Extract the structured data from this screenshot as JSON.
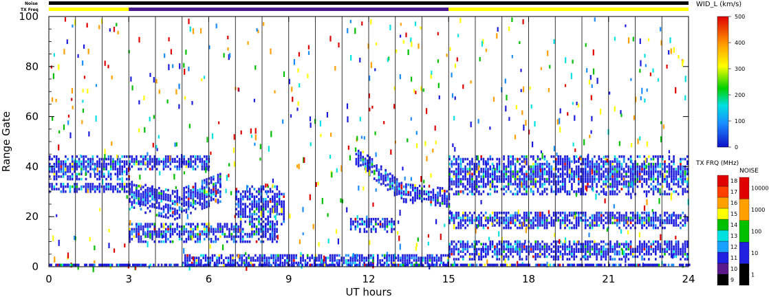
{
  "header": {
    "noise_label": "Noise",
    "txfreq_label": "TX Freq"
  },
  "chart_data": {
    "type": "scatter",
    "subtype": "range-time-intensity",
    "xlabel": "UT hours",
    "ylabel": "Range Gate",
    "xlim": [
      0,
      24
    ],
    "ylim": [
      0,
      100
    ],
    "x_ticks": [
      "0",
      "3",
      "6",
      "9",
      "12",
      "15",
      "18",
      "21",
      "24"
    ],
    "y_ticks": [
      "0",
      "20",
      "40",
      "60",
      "80",
      "100"
    ],
    "scan_boundaries_hours": [
      1,
      2,
      3,
      4,
      5,
      6,
      7,
      8,
      9,
      10,
      11,
      12,
      13,
      14,
      15,
      16,
      17,
      18,
      19,
      20,
      21,
      22,
      23
    ],
    "tx_freq_bar": [
      {
        "start": 0,
        "end": 3,
        "color": "#ffff00"
      },
      {
        "start": 3,
        "end": 15,
        "color": "#4b1a8c"
      },
      {
        "start": 15,
        "end": 24,
        "color": "#ffff00"
      }
    ],
    "noise_bar": [
      {
        "start": 0,
        "end": 24,
        "color": "#000000"
      }
    ],
    "echo_bands": [
      {
        "x0": 0,
        "x1": 3,
        "y": 40,
        "w": 10
      },
      {
        "x0": 0,
        "x1": 3,
        "y": 32,
        "w": 4
      },
      {
        "x0": 3,
        "x1": 6.4,
        "lo": [
          29,
          25,
          32
        ],
        "w": 12
      },
      {
        "x0": 3,
        "x1": 6,
        "y": 42,
        "w": 6
      },
      {
        "x0": 3,
        "x1": 8.6,
        "y": 14,
        "w": 8
      },
      {
        "x0": 7,
        "x1": 8.8,
        "y": 25,
        "w": 16
      },
      {
        "x0": 5,
        "x1": 15,
        "y": 3,
        "w": 5
      },
      {
        "x0": 11.5,
        "x1": 15,
        "lo": [
          45,
          30,
          28
        ],
        "w": 8
      },
      {
        "x0": 11.3,
        "x1": 13,
        "y": 17,
        "w": 6
      },
      {
        "x0": 15,
        "x1": 24,
        "y": 37,
        "w": 16
      },
      {
        "x0": 15,
        "x1": 24,
        "y": 19,
        "w": 7
      },
      {
        "x0": 15,
        "x1": 24,
        "y": 7,
        "w": 8
      }
    ],
    "width_colorbar": {
      "title": "WID_L (km/s)",
      "ticks": [
        "0",
        "100",
        "200",
        "300",
        "400",
        "500"
      ],
      "range": [
        0,
        500
      ]
    },
    "txfreq_colorbar": {
      "title": "TX FRQ (MHz)",
      "ticks": [
        "9",
        "10",
        "11",
        "12",
        "13",
        "14",
        "15",
        "16",
        "17",
        "18"
      ],
      "colors": [
        "#000000",
        "#5a1a8c",
        "#2020e0",
        "#1aa0ff",
        "#00e0e0",
        "#00c000",
        "#ffff00",
        "#ffa000",
        "#ff4000",
        "#e00000"
      ]
    },
    "noise_colorbar": {
      "title": "NOISE",
      "ticks": [
        "1",
        "10",
        "100",
        "1000",
        "10000"
      ],
      "colors": [
        "#000000",
        "#2020e0",
        "#00c000",
        "#ffa000",
        "#e00000"
      ]
    }
  }
}
